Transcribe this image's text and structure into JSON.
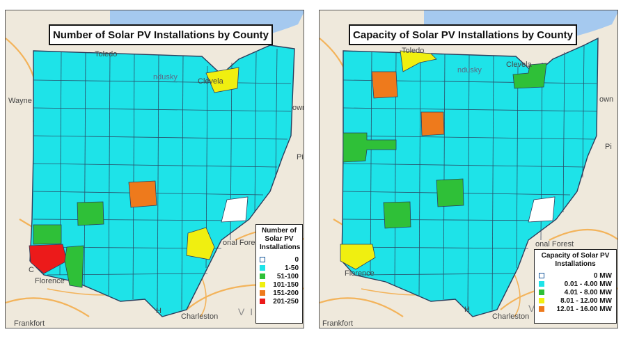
{
  "colors": {
    "zero": "#ffffff",
    "low": "#1ee3e8",
    "green": "#2fc038",
    "yellow": "#f0ef10",
    "orange": "#ee7a1c",
    "red": "#ec1a1a",
    "water": "#a5c9ef",
    "land": "#efe9dc",
    "road": "#f3b35a",
    "county_border": "#2b3d5c"
  },
  "left_map": {
    "title": "Number of Solar PV Installations by County",
    "places": {
      "toledo": "Toledo",
      "sandusky": "ndusky",
      "cleveland": "Clevela",
      "wayne": "Wayne",
      "town": "own",
      "pi": "Pi",
      "forest": "onal Forest",
      "florence": "Florence",
      "frankfort": "Frankfort",
      "hn": "H",
      "charleston": "Charleston",
      "vir": "V I R",
      "c": "C"
    },
    "legend": {
      "title": "Number of Solar PV Installations",
      "items": [
        {
          "label": "0",
          "color": "#ffffff"
        },
        {
          "label": "1-50",
          "color": "#1ee3e8"
        },
        {
          "label": "51-100",
          "color": "#2fc038"
        },
        {
          "label": "101-150",
          "color": "#f0ef10"
        },
        {
          "label": "151-200",
          "color": "#ee7a1c"
        },
        {
          "label": "201-250",
          "color": "#ec1a1a"
        }
      ]
    }
  },
  "right_map": {
    "title": "Capacity of Solar PV Installations by County",
    "places": {
      "toledo": "Toledo",
      "sandusky": "ndusky",
      "cleveland": "Clevela",
      "town": "own",
      "pi": "Pi",
      "forest": "onal Forest",
      "florence": "Florence",
      "frankfort": "Frankfort",
      "hn": "H",
      "charleston": "Charleston",
      "v": "V"
    },
    "legend": {
      "title": "Capacity of Solar PV Installations",
      "items": [
        {
          "label": "0 MW",
          "color": "#ffffff"
        },
        {
          "label": "0.01 - 4.00 MW",
          "color": "#1ee3e8"
        },
        {
          "label": "4.01 - 8.00 MW",
          "color": "#2fc038"
        },
        {
          "label": "8.01 - 12.00 MW",
          "color": "#f0ef10"
        },
        {
          "label": "12.01 - 16.00 MW",
          "color": "#ee7a1c"
        }
      ]
    }
  }
}
